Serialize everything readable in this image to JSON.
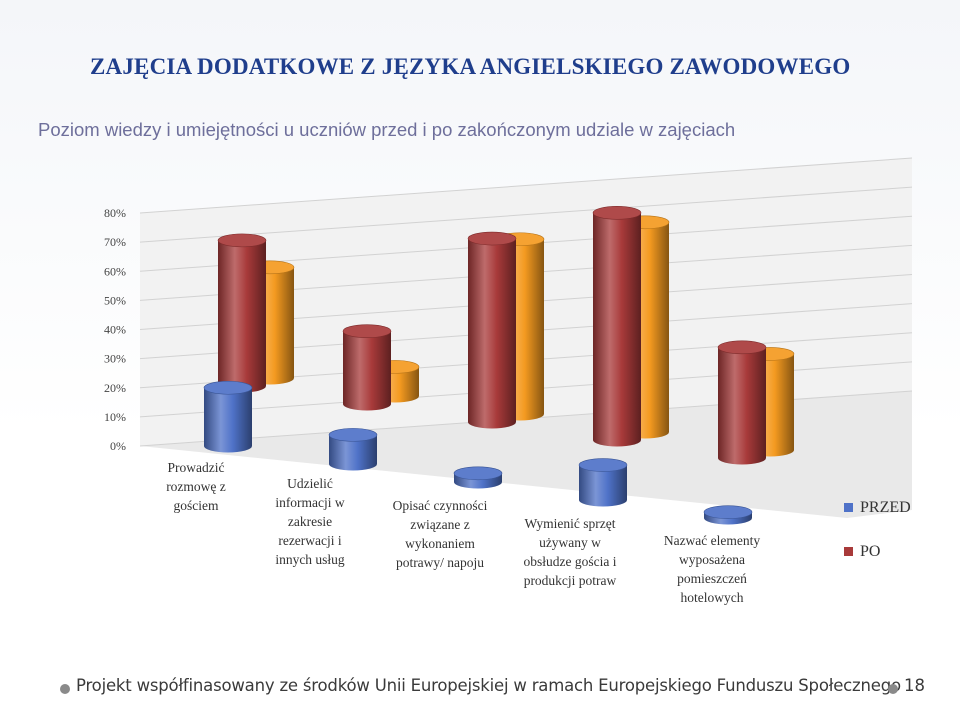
{
  "slide": {
    "title": "ZAJĘCIA DODATKOWE Z JĘZYKA ANGIELSKIEGO ZAWODOWEGO",
    "subtitle": "Poziom wiedzy i umiejętności u uczniów przed i po zakończonym udziale w zajęciach"
  },
  "chart_data": {
    "type": "bar",
    "style": "3d-cylinder",
    "title": "",
    "xlabel": "",
    "ylabel": "",
    "ylim": [
      0,
      0.8
    ],
    "yticks": [
      "0%",
      "10%",
      "20%",
      "30%",
      "40%",
      "50%",
      "60%",
      "70%",
      "80%"
    ],
    "grid": true,
    "legend_position": "right",
    "categories": [
      [
        "Prowadzić",
        "rozmowę z",
        "gościem"
      ],
      [
        "Udzielić",
        "informacji w",
        "zakresie",
        "rezerwacji i",
        "innych usług"
      ],
      [
        "Opisać czynności",
        "związane z",
        "wykonaniem",
        "potrawy/ napoju"
      ],
      [
        "Wymienić  sprzęt",
        "używany w",
        "obsłudze gościa i",
        "produkcji potraw"
      ],
      [
        "Nazwać elementy",
        "wyposażena",
        "pomieszczeń",
        "hotelowych"
      ]
    ],
    "series": [
      {
        "name": "PRZED",
        "color": "#4f72c8",
        "values": [
          0.2,
          0.1,
          0.03,
          0.12,
          0.02
        ]
      },
      {
        "name": "PO",
        "color": "#a83a3a",
        "values": [
          0.5,
          0.25,
          0.63,
          0.78,
          0.38
        ]
      },
      {
        "name": "",
        "color": "#f49a20",
        "values": [
          0.38,
          0.1,
          0.6,
          0.72,
          0.33
        ]
      }
    ]
  },
  "footer": {
    "text": "Projekt współfinasowany ze środków Unii Europejskiej w ramach Europejskiego Funduszu Społecznego",
    "page_number": "18"
  }
}
